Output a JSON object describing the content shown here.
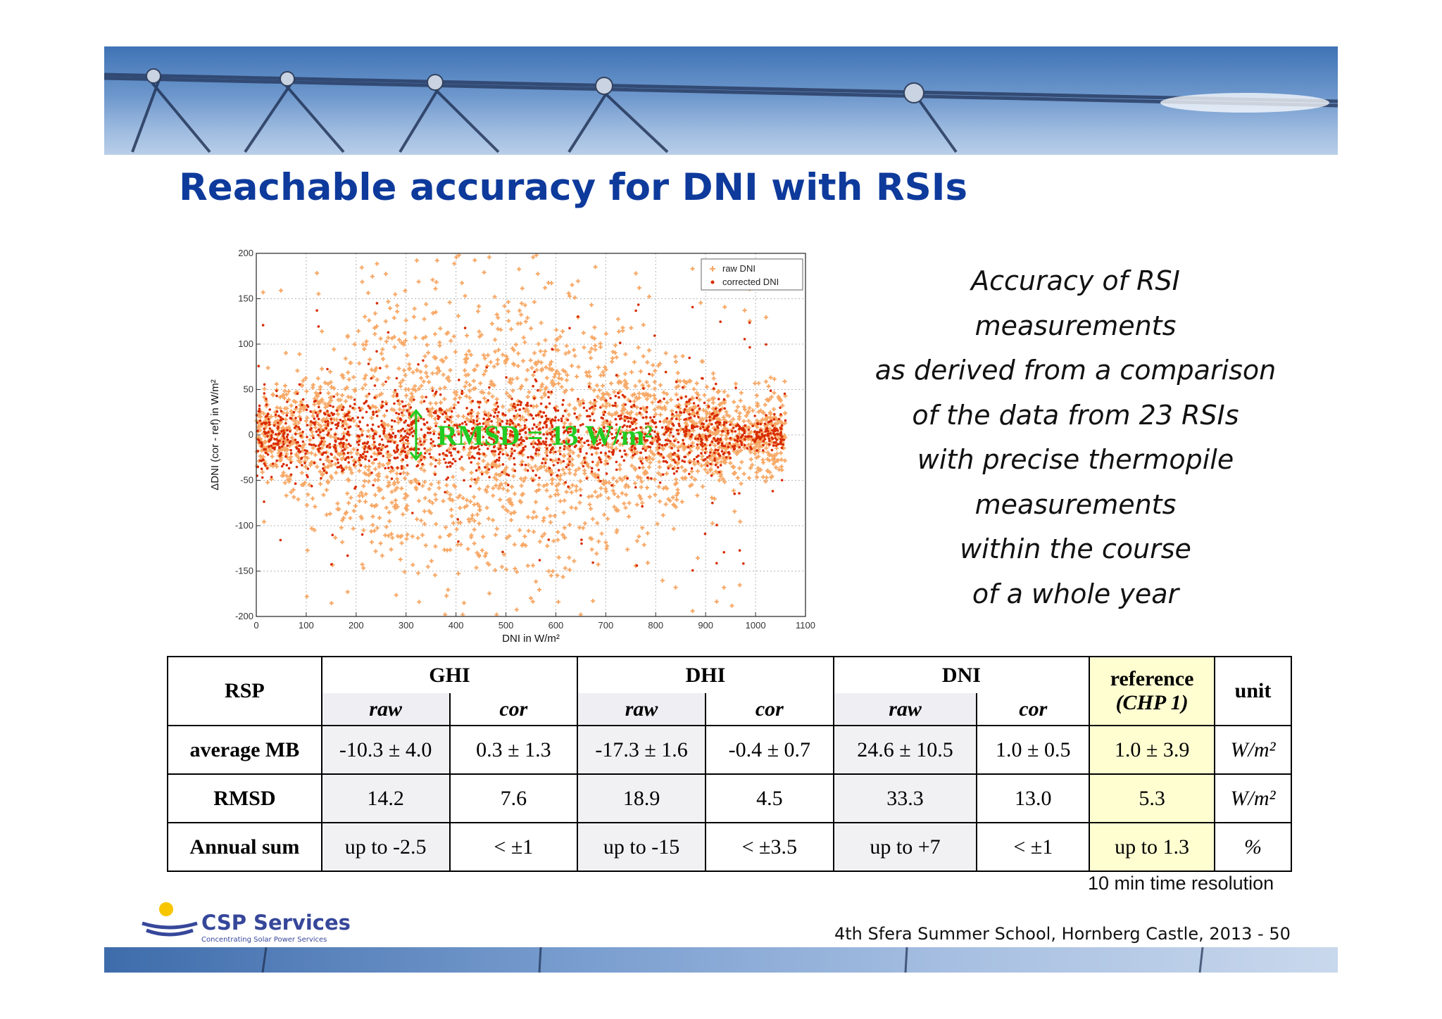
{
  "slide": {
    "title": "Reachable accuracy for DNI with RSIs",
    "description_lines": [
      "Accuracy of RSI",
      "measurements",
      "as derived from a comparison",
      "of the data from 23 RSIs",
      "with precise thermopile",
      "measurements",
      "within the course",
      "of a whole year"
    ],
    "resolution_note": "10 min time resolution",
    "footer": "4th Sfera Summer School, Hornberg Castle, 2013   - 50"
  },
  "logo": {
    "name": "CSP Services",
    "tagline": "Concentrating Solar Power Services",
    "sun_color": "#f7c600",
    "text_color": "#36479a"
  },
  "chart_data": {
    "type": "scatter",
    "xlabel": "DNI in W/m²",
    "ylabel": "ΔDNI (cor - ref) in W/m²",
    "xlim": [
      0,
      1100
    ],
    "ylim": [
      -200,
      200
    ],
    "x_ticks": [
      0,
      100,
      200,
      300,
      400,
      500,
      600,
      700,
      800,
      900,
      1000,
      1100
    ],
    "y_ticks": [
      200,
      150,
      100,
      50,
      0,
      -50,
      -100,
      -150,
      -200
    ],
    "grid": true,
    "legend_position": "top-right",
    "annotation": "RMSD = 13 W/m²",
    "annotation_color": "#22cc22",
    "series": [
      {
        "name": "raw DNI",
        "color": "#f7a866",
        "marker": "+",
        "x_range": [
          0,
          1060
        ],
        "y_spread_max": 120
      },
      {
        "name": "corrected DNI",
        "color": "#d92b00",
        "marker": ".",
        "x_range": [
          0,
          1060
        ],
        "y_band": [
          -40,
          40
        ]
      }
    ]
  },
  "table": {
    "corner": "RSP",
    "groups": [
      "GHI",
      "DHI",
      "DNI"
    ],
    "subheaders": [
      "raw",
      "cor",
      "raw",
      "cor",
      "raw",
      "cor"
    ],
    "reference_title": "reference",
    "reference_sub": "(CHP 1)",
    "unit_header": "unit",
    "rows": [
      {
        "label": "average MB",
        "cells": [
          "-10.3 ± 4.0",
          "0.3 ± 1.3",
          "-17.3 ± 1.6",
          "-0.4 ± 0.7",
          "24.6 ± 10.5",
          "1.0 ± 0.5"
        ],
        "reference": "1.0 ± 3.9",
        "unit": "W/m²"
      },
      {
        "label": "RMSD",
        "cells": [
          "14.2",
          "7.6",
          "18.9",
          "4.5",
          "33.3",
          "13.0"
        ],
        "reference": "5.3",
        "unit": "W/m²"
      },
      {
        "label": "Annual sum",
        "cells": [
          "up to -2.5",
          "< ±1",
          "up to -15",
          "< ±3.5",
          "up to +7",
          "< ±1"
        ],
        "reference": "up to 1.3",
        "unit": "%"
      }
    ]
  }
}
